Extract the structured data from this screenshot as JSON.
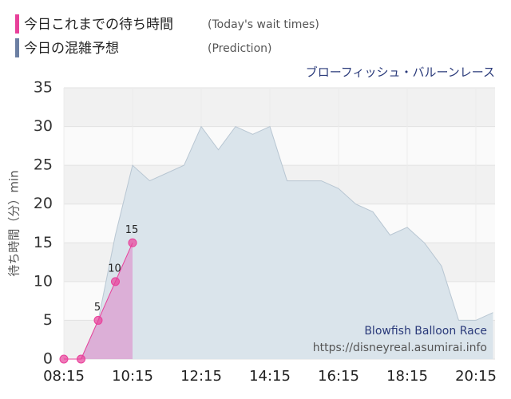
{
  "chart_data": {
    "type": "area",
    "title": "ブローフィッシュ・バルーンレース",
    "y_label": "待ち時間（分）min",
    "legend_notes": [
      "(Today's wait times)",
      "(Prediction)"
    ],
    "watermark": [
      "Blowfish Balloon Race",
      "https://disneyreal.asumirai.info"
    ],
    "categories": [
      "08:15",
      null,
      null,
      null,
      "10:15",
      null,
      null,
      null,
      "12:15",
      null,
      null,
      null,
      "14:15",
      null,
      null,
      null,
      "16:15",
      null,
      null,
      null,
      "18:15",
      null,
      null,
      null,
      "20:15",
      null
    ],
    "series": [
      {
        "name": "今日これまでの待ち時間",
        "color": "#e8409a",
        "fill": "#dca6d3",
        "values": [
          0,
          0,
          5,
          10,
          15,
          null,
          null,
          null,
          null,
          null,
          null,
          null,
          null,
          null,
          null,
          null,
          null,
          null,
          null,
          null,
          null,
          null,
          null,
          null,
          null,
          null
        ]
      },
      {
        "name": "今日の混雑予想",
        "color": "#6c7fa3",
        "fill": "#dae4eb",
        "values": [
          0,
          0,
          5,
          16,
          25,
          23,
          24,
          25,
          30,
          27,
          30,
          29,
          30,
          23,
          23,
          23,
          22,
          20,
          19,
          16,
          17,
          15,
          12,
          5,
          5,
          6
        ]
      }
    ],
    "ylim": [
      0,
      35
    ],
    "yticks": [
      0,
      5,
      10,
      15,
      20,
      25,
      30,
      35
    ],
    "grid": true
  }
}
